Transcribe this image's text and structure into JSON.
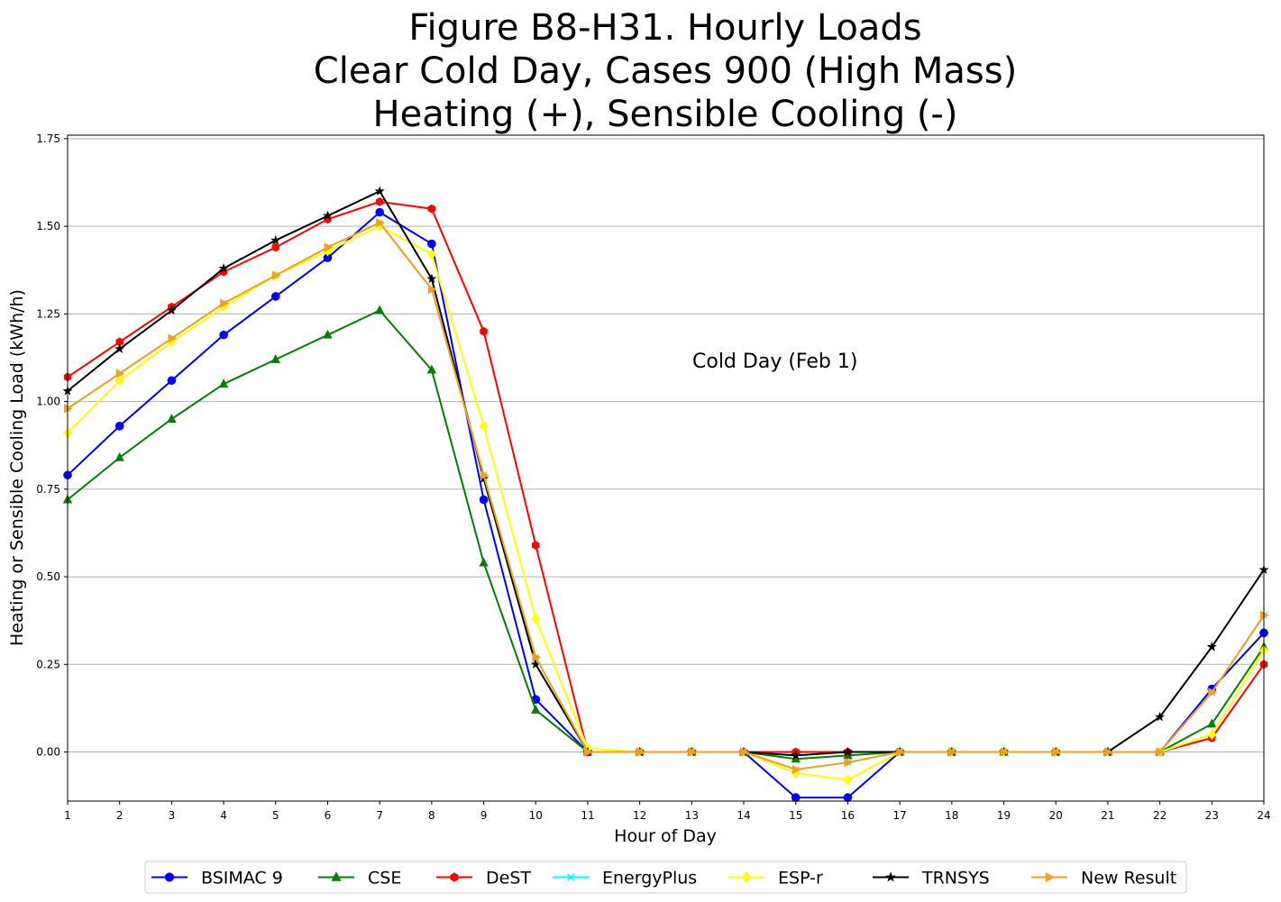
{
  "chart_data": {
    "type": "line",
    "title": [
      "Figure B8-H31. Hourly Loads",
      "Clear Cold Day, Cases 900 (High Mass)",
      "Heating (+), Sensible Cooling (-)"
    ],
    "xlabel": "Hour of Day",
    "ylabel": "Heating or Sensible Cooling Load (kWh/h)",
    "annotation": "Cold Day (Feb 1)",
    "xlim": [
      1,
      24
    ],
    "ylim": [
      -0.14,
      1.76
    ],
    "x": [
      1,
      2,
      3,
      4,
      5,
      6,
      7,
      8,
      9,
      10,
      11,
      12,
      13,
      14,
      15,
      16,
      17,
      18,
      19,
      20,
      21,
      22,
      23,
      24
    ],
    "yticks": [
      "0.00",
      "0.25",
      "0.50",
      "0.75",
      "1.00",
      "1.25",
      "1.50",
      "1.75"
    ],
    "xticks": [
      "1",
      "2",
      "3",
      "4",
      "5",
      "6",
      "7",
      "8",
      "9",
      "10",
      "11",
      "12",
      "13",
      "14",
      "15",
      "16",
      "17",
      "18",
      "19",
      "20",
      "21",
      "22",
      "23",
      "24"
    ],
    "grid": "horizontal",
    "legend_position": "bottom-center",
    "series": [
      {
        "name": "BSIMAC 9",
        "color": "#0000ff",
        "marker": "circle",
        "values": [
          0.79,
          0.93,
          1.06,
          1.19,
          1.3,
          1.41,
          1.54,
          1.45,
          0.72,
          0.15,
          0.0,
          0.0,
          0.0,
          0.0,
          -0.13,
          -0.13,
          0.0,
          0.0,
          0.0,
          0.0,
          0.0,
          0.0,
          0.18,
          0.34
        ]
      },
      {
        "name": "CSE",
        "color": "#008000",
        "marker": "triangle",
        "values": [
          0.72,
          0.84,
          0.95,
          1.05,
          1.12,
          1.19,
          1.26,
          1.09,
          0.54,
          0.12,
          0.0,
          0.0,
          0.0,
          0.0,
          -0.02,
          -0.01,
          0.0,
          0.0,
          0.0,
          0.0,
          0.0,
          0.0,
          0.08,
          0.3
        ]
      },
      {
        "name": "DeST",
        "color": "#ff0000",
        "marker": "hexagon",
        "values": [
          1.07,
          1.17,
          1.27,
          1.37,
          1.44,
          1.52,
          1.57,
          1.55,
          1.2,
          0.59,
          0.0,
          0.0,
          0.0,
          0.0,
          0.0,
          0.0,
          0.0,
          0.0,
          0.0,
          0.0,
          0.0,
          0.0,
          0.04,
          0.25
        ]
      },
      {
        "name": "EnergyPlus",
        "color": "#00ffff",
        "marker": "x",
        "values": [
          0.98,
          1.08,
          1.18,
          1.28,
          1.36,
          1.44,
          1.51,
          1.32,
          0.79,
          0.27,
          0.0,
          0.0,
          0.0,
          0.0,
          -0.05,
          -0.03,
          0.0,
          0.0,
          0.0,
          0.0,
          0.0,
          0.0,
          0.17,
          0.39
        ]
      },
      {
        "name": "ESP-r",
        "color": "#ffff00",
        "marker": "diamond",
        "values": [
          0.91,
          1.06,
          1.17,
          1.27,
          1.36,
          1.43,
          1.5,
          1.42,
          0.93,
          0.38,
          0.01,
          0.0,
          0.0,
          0.0,
          -0.06,
          -0.08,
          0.0,
          0.0,
          0.0,
          0.0,
          0.0,
          0.0,
          0.05,
          0.29
        ]
      },
      {
        "name": "TRNSYS",
        "color": "#000000",
        "marker": "star",
        "values": [
          1.03,
          1.15,
          1.26,
          1.38,
          1.46,
          1.53,
          1.6,
          1.35,
          0.78,
          0.25,
          0.0,
          0.0,
          0.0,
          0.0,
          -0.01,
          0.0,
          0.0,
          0.0,
          0.0,
          0.0,
          0.0,
          0.1,
          0.3,
          0.52
        ]
      },
      {
        "name": "New Result",
        "color": "#f5a01a",
        "marker": "triangle-right",
        "values": [
          0.98,
          1.08,
          1.18,
          1.28,
          1.36,
          1.44,
          1.51,
          1.32,
          0.79,
          0.27,
          0.0,
          0.0,
          0.0,
          0.0,
          -0.05,
          -0.03,
          0.0,
          0.0,
          0.0,
          0.0,
          0.0,
          0.0,
          0.17,
          0.39
        ]
      }
    ]
  }
}
